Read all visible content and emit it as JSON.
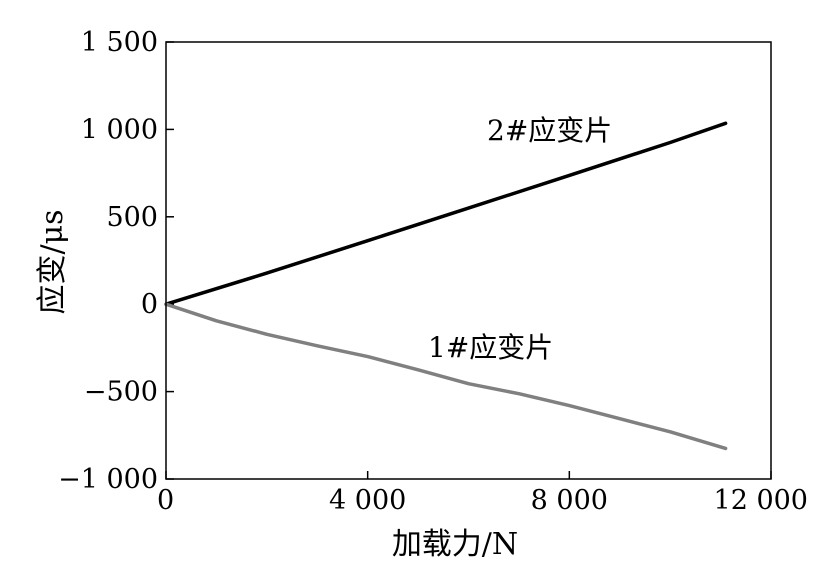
{
  "chart_data": {
    "type": "line",
    "title": "",
    "xlabel": "加载力/N",
    "ylabel": "应变/μs",
    "xlim": [
      0,
      12000
    ],
    "ylim": [
      -1000,
      1500
    ],
    "xticks": [
      0,
      4000,
      8000,
      12000
    ],
    "xtick_labels": [
      "0",
      "4 000",
      "8 000",
      "12 000"
    ],
    "yticks": [
      -1000,
      -500,
      0,
      500,
      1000,
      1500
    ],
    "ytick_labels": [
      "−1 000",
      "−500",
      "0",
      "500",
      "1 000",
      "1 500"
    ],
    "grid": false,
    "series": [
      {
        "name": "2#应变片",
        "color": "#000000",
        "x": [
          0,
          2000,
          4000,
          6000,
          8000,
          10000,
          11100
        ],
        "y": [
          0,
          178,
          363,
          550,
          737,
          925,
          1035
        ]
      },
      {
        "name": "1#应变片",
        "color": "#808080",
        "x": [
          0,
          1000,
          2000,
          3000,
          4000,
          5000,
          6000,
          7000,
          8000,
          9000,
          10000,
          11100
        ],
        "y": [
          0,
          -95,
          -172,
          -238,
          -300,
          -375,
          -455,
          -512,
          -580,
          -655,
          -730,
          -825
        ]
      }
    ]
  }
}
